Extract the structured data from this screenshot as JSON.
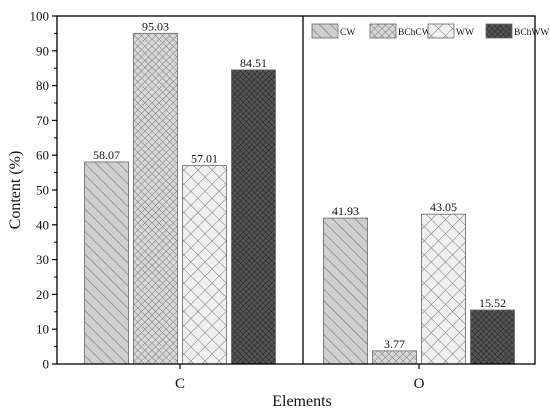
{
  "chart_data": {
    "type": "bar",
    "categories": [
      "C",
      "O"
    ],
    "series": [
      {
        "name": "CW",
        "values": [
          58.07,
          41.93
        ],
        "pattern": "diagonal"
      },
      {
        "name": "BChCW",
        "values": [
          95.03,
          3.77
        ],
        "pattern": "fine-crosshatch"
      },
      {
        "name": "WW",
        "values": [
          57.01,
          43.05
        ],
        "pattern": "open-crosshatch"
      },
      {
        "name": "BChWW",
        "values": [
          84.51,
          15.52
        ],
        "pattern": "dark-crosshatch"
      }
    ],
    "data_labels": [
      [
        "58.07",
        "41.93"
      ],
      [
        "95.03",
        "3.77"
      ],
      [
        "57.01",
        "43.05"
      ],
      [
        "84.51",
        "15.52"
      ]
    ],
    "xlabel": "Elements",
    "ylabel": "Content (%)",
    "ylim": [
      0,
      100
    ],
    "yticks": [
      0,
      10,
      20,
      30,
      40,
      50,
      60,
      70,
      80,
      90,
      100
    ],
    "grid": false,
    "legend_position": "top-right",
    "panel_divider_between_categories": true,
    "colors": {
      "bar_fill": "#c8c8c8",
      "dark_fill": "#4a4a4a",
      "axis": "#000000"
    }
  }
}
